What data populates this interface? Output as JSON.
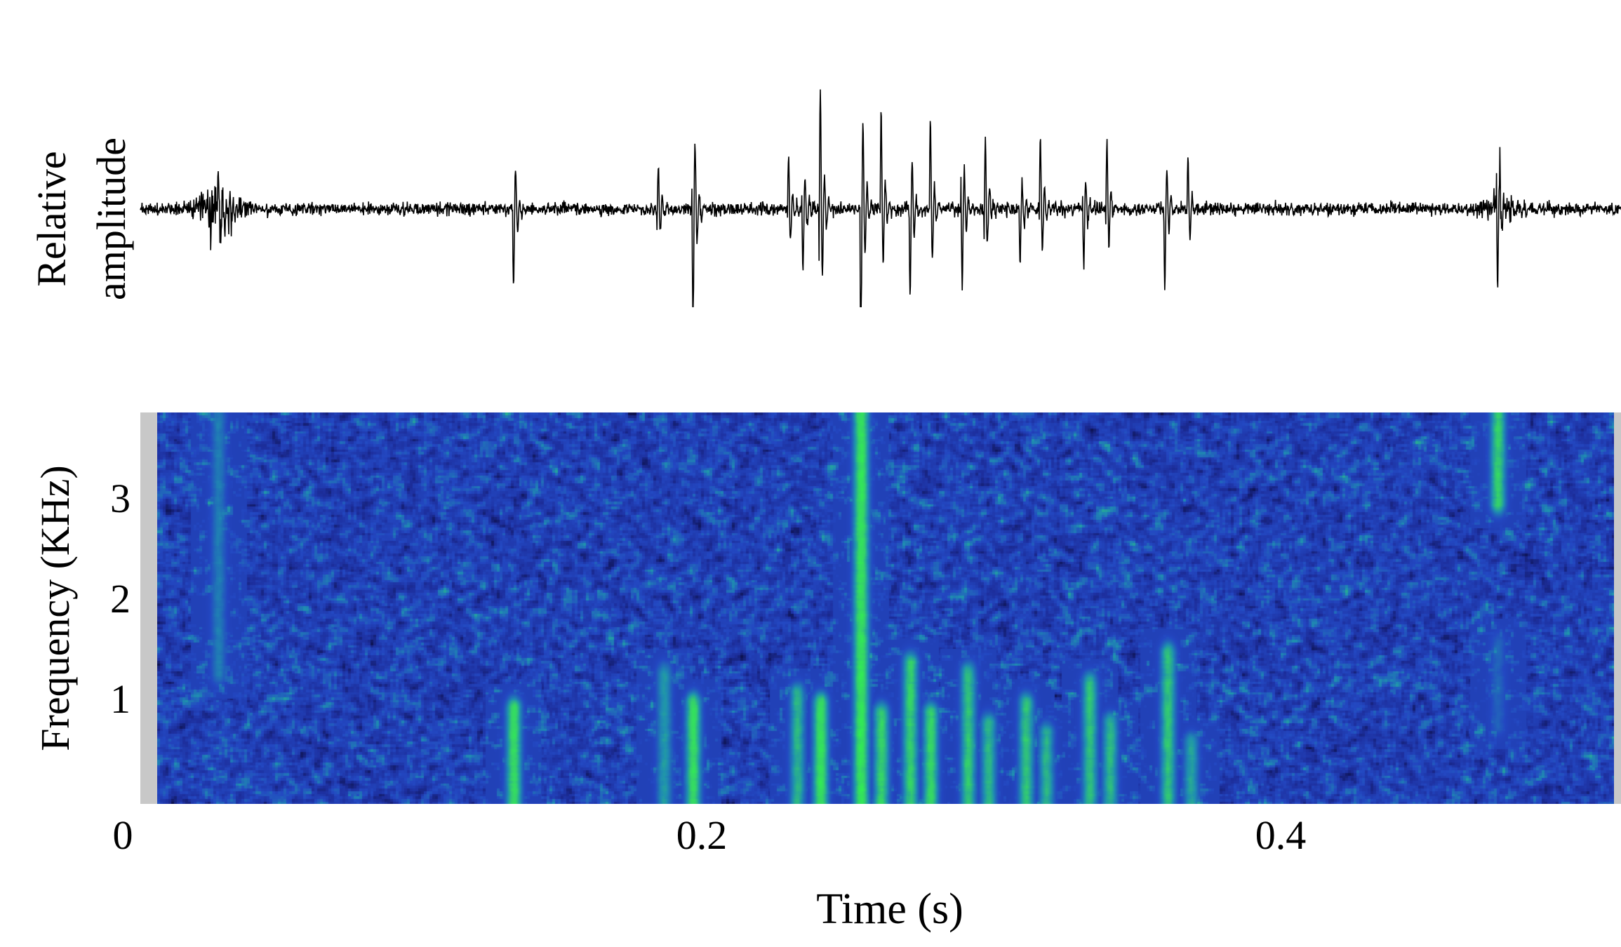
{
  "chart_data": [
    {
      "type": "line",
      "panel": "oscillogram",
      "ylabel_lines": [
        "Relative",
        "amplitude"
      ],
      "xlim": [
        0,
        0.51
      ],
      "line_color": "#000000",
      "noise_bursts": [
        {
          "t": 0.033,
          "amp": 0.32,
          "width": 0.006
        },
        {
          "t": 0.475,
          "amp": 0.12,
          "width": 0.006
        }
      ],
      "pulses": [
        {
          "t": 0.033,
          "amp": 0.3
        },
        {
          "t": 0.135,
          "amp": 0.5
        },
        {
          "t": 0.185,
          "amp": 0.27
        },
        {
          "t": 0.197,
          "amp": 0.78
        },
        {
          "t": 0.23,
          "amp": 0.34
        },
        {
          "t": 0.235,
          "amp": 0.38
        },
        {
          "t": 0.241,
          "amp": 0.75
        },
        {
          "t": 0.255,
          "amp": 1.0
        },
        {
          "t": 0.262,
          "amp": 0.62
        },
        {
          "t": 0.272,
          "amp": 0.55
        },
        {
          "t": 0.279,
          "amp": 0.57
        },
        {
          "t": 0.29,
          "amp": 0.48
        },
        {
          "t": 0.298,
          "amp": 0.43
        },
        {
          "t": 0.31,
          "amp": 0.34
        },
        {
          "t": 0.317,
          "amp": 0.48
        },
        {
          "t": 0.332,
          "amp": 0.36
        },
        {
          "t": 0.34,
          "amp": 0.44
        },
        {
          "t": 0.36,
          "amp": 0.5
        },
        {
          "t": 0.368,
          "amp": 0.33
        },
        {
          "t": 0.475,
          "amp": 0.5
        }
      ]
    },
    {
      "type": "heatmap",
      "panel": "spectrogram",
      "xlabel": "Time (s)",
      "ylabel": "Frequency (KHz)",
      "xlim": [
        0,
        0.51
      ],
      "ylim": [
        0,
        3.9
      ],
      "xticks": [
        {
          "value": 0,
          "label": "0"
        },
        {
          "value": 0.2,
          "label": "0.2"
        },
        {
          "value": 0.4,
          "label": "0.4"
        }
      ],
      "yticks": [
        {
          "value": 1,
          "label": "1"
        },
        {
          "value": 2,
          "label": "2"
        },
        {
          "value": 3,
          "label": "3"
        }
      ],
      "colormap": [
        "#0d1250",
        "#1d2f9e",
        "#2348c2",
        "#1f8fb0",
        "#35d26a",
        "#2eff45"
      ],
      "background_noise_level": 0.34,
      "energy_events": [
        {
          "t": 0.033,
          "f_low": 1.3,
          "f_high": 3.9,
          "level": 0.62
        },
        {
          "t": 0.135,
          "f_low": 0.0,
          "f_high": 0.95,
          "level": 0.95
        },
        {
          "t": 0.187,
          "f_low": 0.0,
          "f_high": 1.3,
          "level": 0.72
        },
        {
          "t": 0.197,
          "f_low": 0.0,
          "f_high": 1.0,
          "level": 0.95
        },
        {
          "t": 0.233,
          "f_low": 0.0,
          "f_high": 1.1,
          "level": 0.8
        },
        {
          "t": 0.241,
          "f_low": 0.0,
          "f_high": 1.0,
          "level": 0.98
        },
        {
          "t": 0.255,
          "f_low": 0.0,
          "f_high": 3.9,
          "level": 1.0
        },
        {
          "t": 0.262,
          "f_low": 0.0,
          "f_high": 0.9,
          "level": 0.92
        },
        {
          "t": 0.272,
          "f_low": 0.0,
          "f_high": 1.4,
          "level": 0.9
        },
        {
          "t": 0.279,
          "f_low": 0.0,
          "f_high": 0.9,
          "level": 0.92
        },
        {
          "t": 0.292,
          "f_low": 0.0,
          "f_high": 1.3,
          "level": 0.86
        },
        {
          "t": 0.299,
          "f_low": 0.0,
          "f_high": 0.8,
          "level": 0.82
        },
        {
          "t": 0.312,
          "f_low": 0.0,
          "f_high": 1.0,
          "level": 0.86
        },
        {
          "t": 0.319,
          "f_low": 0.0,
          "f_high": 0.7,
          "level": 0.8
        },
        {
          "t": 0.334,
          "f_low": 0.0,
          "f_high": 1.2,
          "level": 0.85
        },
        {
          "t": 0.341,
          "f_low": 0.0,
          "f_high": 0.8,
          "level": 0.82
        },
        {
          "t": 0.361,
          "f_low": 0.0,
          "f_high": 1.5,
          "level": 0.86
        },
        {
          "t": 0.369,
          "f_low": 0.0,
          "f_high": 0.6,
          "level": 0.75
        },
        {
          "t": 0.475,
          "f_low": 3.0,
          "f_high": 3.9,
          "level": 0.9
        },
        {
          "t": 0.475,
          "f_low": 0.8,
          "f_high": 1.6,
          "level": 0.55
        }
      ]
    }
  ]
}
